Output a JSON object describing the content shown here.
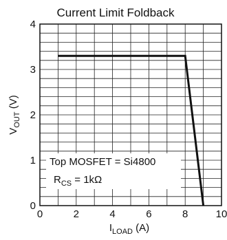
{
  "chart_data": {
    "type": "line",
    "title": "Current Limit Foldback",
    "xlabel": {
      "main": "I",
      "sub": "LOAD",
      "unit": " (A)"
    },
    "ylabel": {
      "main": "V",
      "sub": "OUT",
      "unit": " (V)"
    },
    "xlim": [
      0,
      10
    ],
    "ylim": [
      0,
      4
    ],
    "x_ticks": [
      "0",
      "2",
      "4",
      "6",
      "8",
      "10"
    ],
    "y_ticks": [
      "0",
      "1",
      "2",
      "3",
      "4"
    ],
    "grid": {
      "x_step": 1,
      "y_step": 0.2
    },
    "series": [
      {
        "x": [
          1.0,
          8.0,
          9.0
        ],
        "y": [
          3.3,
          3.3,
          0.0
        ]
      }
    ],
    "annotations": [
      {
        "text": "Top MOSFET = Si4800"
      },
      {
        "main": "R",
        "sub": "CS",
        "rest": " = 1kΩ"
      }
    ]
  }
}
